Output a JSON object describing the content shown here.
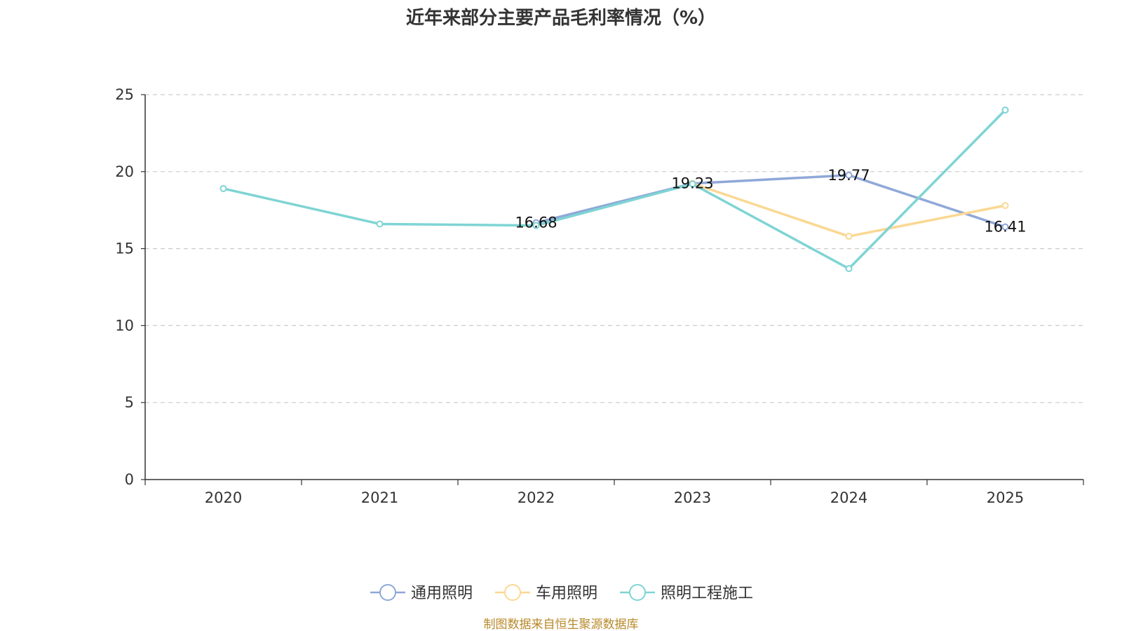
{
  "chart_data": {
    "type": "line",
    "title": "近年来部分主要产品毛利率情况（%）",
    "categories": [
      "2020",
      "2021",
      "2022",
      "2023",
      "2024",
      "2025"
    ],
    "ylim": [
      0,
      25
    ],
    "yticks": [
      0,
      5,
      10,
      15,
      20,
      25
    ],
    "grid": true,
    "legend_position": "bottom",
    "series": [
      {
        "name": "通用照明",
        "color": "#8fa8d8",
        "values": [
          null,
          null,
          16.68,
          19.23,
          19.77,
          16.41
        ]
      },
      {
        "name": "车用照明",
        "color": "#fad893",
        "values": [
          null,
          null,
          null,
          19.23,
          15.8,
          17.8
        ]
      },
      {
        "name": "照明工程施工",
        "color": "#7fd4d4",
        "values": [
          18.9,
          16.6,
          16.5,
          19.2,
          13.7,
          24.0
        ]
      }
    ],
    "data_labels": [
      {
        "series": 0,
        "index": 2,
        "text": "16.68"
      },
      {
        "series": 0,
        "index": 3,
        "text": "19.23"
      },
      {
        "series": 0,
        "index": 4,
        "text": "19.77"
      },
      {
        "series": 0,
        "index": 5,
        "text": "16.41"
      }
    ],
    "source": "制图数据来自恒生聚源数据库"
  }
}
